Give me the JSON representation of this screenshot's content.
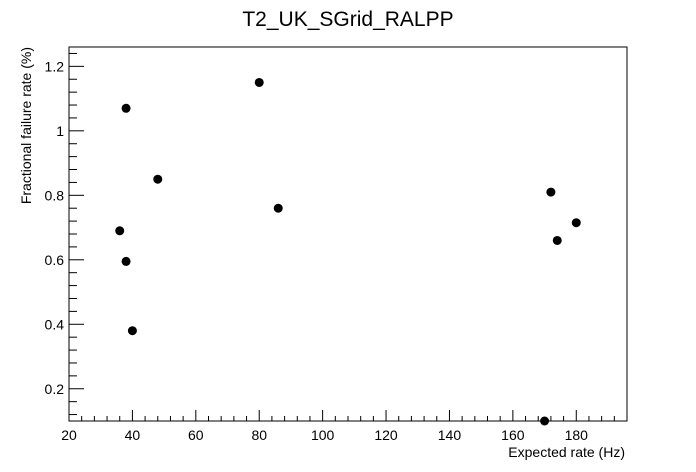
{
  "chart_data": {
    "type": "scatter",
    "title": "T2_UK_SGrid_RALPP",
    "xlabel": "Expected rate (Hz)",
    "ylabel": "Fractional failure rate (%)",
    "xlim": [
      20,
      196
    ],
    "ylim": [
      0.1,
      1.26
    ],
    "x_ticks": [
      20,
      40,
      60,
      80,
      100,
      120,
      140,
      160,
      180
    ],
    "y_ticks": [
      0.2,
      0.4,
      0.6,
      0.8,
      1.0,
      1.2
    ],
    "y_tick_labels": [
      "0.2",
      "0.4",
      "0.6",
      "0.8",
      "1",
      "1.2"
    ],
    "grid": false,
    "marker_color": "#000000",
    "points": [
      {
        "x": 36,
        "y": 0.69
      },
      {
        "x": 38,
        "y": 1.07
      },
      {
        "x": 38,
        "y": 0.595
      },
      {
        "x": 40,
        "y": 0.38
      },
      {
        "x": 48,
        "y": 0.85
      },
      {
        "x": 80,
        "y": 1.15
      },
      {
        "x": 86,
        "y": 0.76
      },
      {
        "x": 170,
        "y": 0.1
      },
      {
        "x": 172,
        "y": 0.81
      },
      {
        "x": 174,
        "y": 0.66
      },
      {
        "x": 180,
        "y": 0.715
      }
    ]
  }
}
